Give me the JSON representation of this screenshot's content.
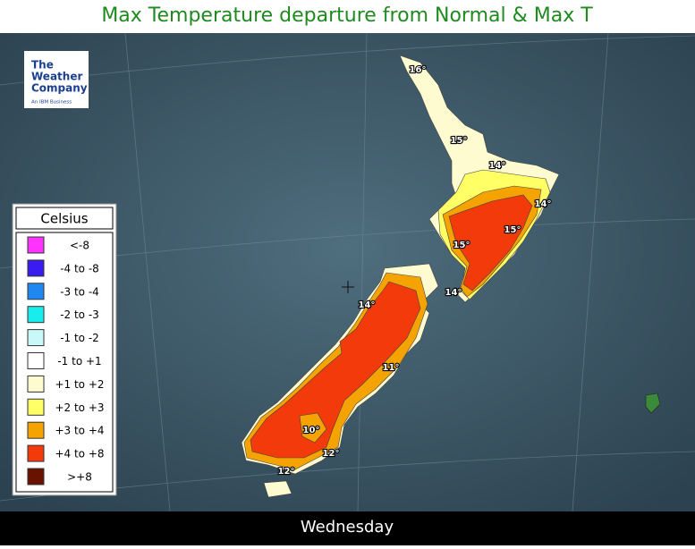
{
  "header": {
    "title": "Max Temperature departure from Normal & Max T"
  },
  "logo": {
    "lines": [
      "The",
      "Weather",
      "Company"
    ],
    "tagline": "An IBM Business"
  },
  "legend": {
    "title": "Celsius",
    "items": [
      {
        "label": "<-8",
        "color": "#ff33ff"
      },
      {
        "label": "-4 to -8",
        "color": "#3b1cf0"
      },
      {
        "label": "-3 to -4",
        "color": "#1e88f0"
      },
      {
        "label": "-2 to -3",
        "color": "#19ecec"
      },
      {
        "label": "-1 to -2",
        "color": "#c8f8f8"
      },
      {
        "label": "-1 to +1",
        "color": "#ffffff"
      },
      {
        "label": "+1 to +2",
        "color": "#fffbd0"
      },
      {
        "label": "+2 to +3",
        "color": "#ffff66"
      },
      {
        "label": "+3 to +4",
        "color": "#f5a300"
      },
      {
        "label": "+4 to +8",
        "color": "#f23a0b"
      },
      {
        "label": ">+8",
        "color": "#6a1200"
      }
    ]
  },
  "map": {
    "labels": [
      "16°",
      "15°",
      "14°",
      "14°",
      "15°",
      "15°",
      "14°",
      "14°",
      "11°",
      "10°",
      "12°",
      "12°"
    ]
  },
  "footer": {
    "day": "Wednesday"
  }
}
